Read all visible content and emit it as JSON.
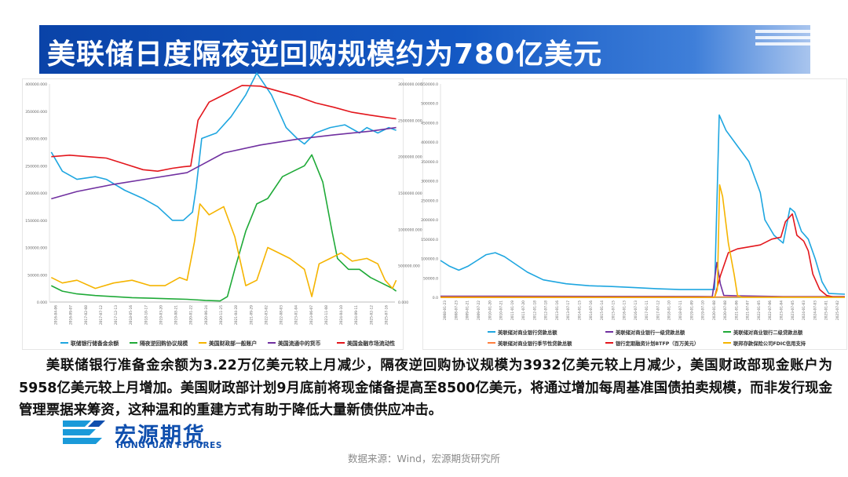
{
  "title": "美联储日度隔夜逆回购规模约为780亿美元",
  "paragraph": "美联储银行准备金余额为3.22万亿美元较上月减少，隔夜逆回购协议规模为3932亿美元较上月减少，美国财政部现金账户为5958亿美元较上月增加。美国财政部计划9月底前将现金储备提高至8500亿美元，将通过增加每周基准国债拍卖规模，而非发行现金管理票据来筹资，这种温和的重建方式有助于降低大量新债供应冲击。",
  "logo": {
    "cn": "宏源期货",
    "en": "HONGYUAN FUTURES"
  },
  "source": "数据来源：Wind，宏源期货研究所",
  "colors": {
    "blue": "#1ea6e0",
    "red": "#e3161c",
    "purple": "#7030a0",
    "green": "#1faa38",
    "yellow": "#f5b400",
    "orange": "#ff7f3f"
  },
  "chart_data": [
    {
      "type": "line",
      "x_range": [
        "2016-04",
        "2025-09"
      ],
      "y_left": {
        "ticks": [
          "0.000",
          "50000.000",
          "100000.000",
          "150000.000",
          "200000.000",
          "250000.000",
          "300000.000",
          "350000.000",
          "400000.000"
        ],
        "lim": [
          0,
          400000
        ]
      },
      "y_right": {
        "ticks": [
          "0.000",
          "500000.000",
          "1000000.000",
          "1500000.000",
          "2000000.000",
          "2500000.000",
          "3000000.000"
        ],
        "lim": [
          0,
          3000000
        ]
      },
      "x_ticks": [
        "2016-04-06",
        "2016-09-07",
        "2017-02-08",
        "2017-07-12",
        "2017-12-13",
        "2018-05-16",
        "2018-10-17",
        "2019-03-20",
        "2019-08-21",
        "2020-01-22",
        "2020-06-24",
        "2020-11-25",
        "2021-04-28",
        "2021-09-29",
        "2022-03-02",
        "2022-08-03",
        "2023-01-04",
        "2023-06-07",
        "2023-11-08",
        "2024-04-10",
        "2024-09-11",
        "2025-02-12",
        "2025-07-16"
      ],
      "series": [
        {
          "name": "联储银行储备金余额",
          "color": "#1ea6e0",
          "axis": "left",
          "points": [
            [
              2016.3,
              275000
            ],
            [
              2016.6,
              240000
            ],
            [
              2017.0,
              225000
            ],
            [
              2017.5,
              230000
            ],
            [
              2017.8,
              225000
            ],
            [
              2018.3,
              205000
            ],
            [
              2018.8,
              190000
            ],
            [
              2019.2,
              175000
            ],
            [
              2019.6,
              150000
            ],
            [
              2019.9,
              150000
            ],
            [
              2020.15,
              165000
            ],
            [
              2020.25,
              210000
            ],
            [
              2020.4,
              300000
            ],
            [
              2020.8,
              310000
            ],
            [
              2021.2,
              340000
            ],
            [
              2021.6,
              380000
            ],
            [
              2021.9,
              420000
            ],
            [
              2022.3,
              380000
            ],
            [
              2022.7,
              320000
            ],
            [
              2023.0,
              300000
            ],
            [
              2023.2,
              290000
            ],
            [
              2023.5,
              310000
            ],
            [
              2023.9,
              320000
            ],
            [
              2024.3,
              325000
            ],
            [
              2024.7,
              310000
            ],
            [
              2024.9,
              320000
            ],
            [
              2025.2,
              310000
            ],
            [
              2025.5,
              320000
            ],
            [
              2025.7,
              315000
            ]
          ]
        },
        {
          "name": "隔夜逆回购协议规模",
          "color": "#1faa38",
          "axis": "left",
          "points": [
            [
              2016.3,
              30000
            ],
            [
              2016.6,
              20000
            ],
            [
              2017.0,
              15000
            ],
            [
              2017.5,
              12000
            ],
            [
              2018.0,
              10000
            ],
            [
              2018.5,
              8000
            ],
            [
              2019.0,
              7000
            ],
            [
              2019.5,
              6000
            ],
            [
              2020.0,
              5000
            ],
            [
              2020.5,
              3000
            ],
            [
              2020.9,
              2000
            ],
            [
              2021.1,
              10000
            ],
            [
              2021.3,
              60000
            ],
            [
              2021.6,
              130000
            ],
            [
              2021.9,
              180000
            ],
            [
              2022.2,
              190000
            ],
            [
              2022.6,
              230000
            ],
            [
              2022.9,
              240000
            ],
            [
              2023.2,
              250000
            ],
            [
              2023.4,
              270000
            ],
            [
              2023.7,
              220000
            ],
            [
              2023.95,
              130000
            ],
            [
              2024.1,
              80000
            ],
            [
              2024.4,
              60000
            ],
            [
              2024.7,
              60000
            ],
            [
              2025.0,
              45000
            ],
            [
              2025.3,
              35000
            ],
            [
              2025.6,
              25000
            ],
            [
              2025.7,
              20000
            ]
          ]
        },
        {
          "name": "美国财政部一般账户",
          "color": "#f5b400",
          "axis": "left",
          "points": [
            [
              2016.3,
              45000
            ],
            [
              2016.6,
              35000
            ],
            [
              2017.0,
              40000
            ],
            [
              2017.5,
              25000
            ],
            [
              2018.0,
              35000
            ],
            [
              2018.5,
              40000
            ],
            [
              2019.0,
              30000
            ],
            [
              2019.4,
              30000
            ],
            [
              2019.8,
              45000
            ],
            [
              2020.0,
              40000
            ],
            [
              2020.2,
              110000
            ],
            [
              2020.35,
              180000
            ],
            [
              2020.6,
              160000
            ],
            [
              2021.0,
              175000
            ],
            [
              2021.3,
              120000
            ],
            [
              2021.6,
              30000
            ],
            [
              2021.9,
              40000
            ],
            [
              2022.2,
              100000
            ],
            [
              2022.5,
              90000
            ],
            [
              2022.8,
              80000
            ],
            [
              2023.2,
              60000
            ],
            [
              2023.4,
              10000
            ],
            [
              2023.6,
              70000
            ],
            [
              2023.9,
              80000
            ],
            [
              2024.2,
              90000
            ],
            [
              2024.5,
              75000
            ],
            [
              2024.9,
              80000
            ],
            [
              2025.2,
              70000
            ],
            [
              2025.4,
              40000
            ],
            [
              2025.6,
              25000
            ],
            [
              2025.7,
              40000
            ]
          ]
        },
        {
          "name": "美国流通中的货币",
          "color": "#7030a0",
          "axis": "right",
          "points": [
            [
              2016.3,
              1420000
            ],
            [
              2017.0,
              1520000
            ],
            [
              2018.0,
              1620000
            ],
            [
              2019.0,
              1700000
            ],
            [
              2020.0,
              1780000
            ],
            [
              2020.3,
              1860000
            ],
            [
              2021.0,
              2050000
            ],
            [
              2022.0,
              2160000
            ],
            [
              2023.0,
              2240000
            ],
            [
              2024.0,
              2300000
            ],
            [
              2025.0,
              2350000
            ],
            [
              2025.7,
              2400000
            ]
          ]
        },
        {
          "name": "美国金融市场流动性",
          "color": "#e3161c",
          "axis": "right",
          "points": [
            [
              2016.3,
              2000000
            ],
            [
              2016.8,
              2020000
            ],
            [
              2017.3,
              2000000
            ],
            [
              2017.8,
              1980000
            ],
            [
              2018.3,
              1900000
            ],
            [
              2018.8,
              1820000
            ],
            [
              2019.2,
              1800000
            ],
            [
              2019.6,
              1840000
            ],
            [
              2019.9,
              1860000
            ],
            [
              2020.1,
              1870000
            ],
            [
              2020.3,
              2500000
            ],
            [
              2020.6,
              2750000
            ],
            [
              2021.0,
              2850000
            ],
            [
              2021.5,
              2980000
            ],
            [
              2022.0,
              2970000
            ],
            [
              2022.5,
              2900000
            ],
            [
              2023.0,
              2830000
            ],
            [
              2023.5,
              2740000
            ],
            [
              2024.0,
              2680000
            ],
            [
              2024.5,
              2610000
            ],
            [
              2025.0,
              2570000
            ],
            [
              2025.4,
              2540000
            ],
            [
              2025.7,
              2520000
            ]
          ]
        }
      ]
    },
    {
      "type": "line",
      "x_range": [
        "2008-01",
        "2025-09"
      ],
      "y_left": {
        "ticks": [
          "0.0",
          "50000.0",
          "100000.0",
          "150000.0",
          "200000.0",
          "250000.0",
          "300000.0",
          "350000.0",
          "400000.0",
          "450000.0",
          "500000.0",
          "550000.0"
        ],
        "lim": [
          0,
          550000
        ]
      },
      "x_ticks": [
        "2008-01-23",
        "2008-07-23",
        "2009-01-21",
        "2009-07-22",
        "2010-01-20",
        "2010-07-21",
        "2011-01-19",
        "2011-07-20",
        "2012-01-18",
        "2012-07-18",
        "2013-01-16",
        "2013-07-17",
        "2014-01-15",
        "2014-07-16",
        "2015-01-14",
        "2015-07-15",
        "2016-01-13",
        "2016-07-13",
        "2017-01-11",
        "2017-07-12",
        "2018-01-10",
        "2018-07-11",
        "2019-01-09",
        "2019-07-10",
        "2020-01-08",
        "2020-07-08",
        "2021-01-06",
        "2021-07-07",
        "2022-01-05",
        "2022-07-06",
        "2023-01-04",
        "2023-07-05",
        "2024-01-03",
        "2024-07-03",
        "2025-01-01",
        "2025-07-02"
      ],
      "series": [
        {
          "name": "美联储对商业银行贷款总额",
          "color": "#1ea6e0",
          "points": [
            [
              2008.0,
              95000
            ],
            [
              2008.4,
              80000
            ],
            [
              2008.8,
              70000
            ],
            [
              2009.2,
              80000
            ],
            [
              2009.6,
              95000
            ],
            [
              2010.0,
              110000
            ],
            [
              2010.4,
              115000
            ],
            [
              2010.8,
              105000
            ],
            [
              2011.3,
              85000
            ],
            [
              2011.8,
              65000
            ],
            [
              2012.5,
              45000
            ],
            [
              2013.5,
              35000
            ],
            [
              2014.5,
              30000
            ],
            [
              2015.5,
              28000
            ],
            [
              2016.5,
              25000
            ],
            [
              2017.5,
              22000
            ],
            [
              2018.5,
              20000
            ],
            [
              2019.5,
              20000
            ],
            [
              2020.0,
              20000
            ],
            [
              2020.2,
              470000
            ],
            [
              2020.5,
              430000
            ],
            [
              2021.0,
              390000
            ],
            [
              2021.5,
              350000
            ],
            [
              2022.0,
              270000
            ],
            [
              2022.2,
              200000
            ],
            [
              2022.6,
              160000
            ],
            [
              2023.0,
              140000
            ],
            [
              2023.3,
              230000
            ],
            [
              2023.5,
              220000
            ],
            [
              2023.8,
              170000
            ],
            [
              2024.1,
              150000
            ],
            [
              2024.4,
              100000
            ],
            [
              2024.7,
              40000
            ],
            [
              2025.0,
              10000
            ],
            [
              2025.7,
              8000
            ]
          ]
        },
        {
          "name": "美联储对商业银行一级贷款总额",
          "color": "#7030a0",
          "points": [
            [
              2008.0,
              3000
            ],
            [
              2019.9,
              2000
            ],
            [
              2020.1,
              90000
            ],
            [
              2020.25,
              35000
            ],
            [
              2020.4,
              5000
            ],
            [
              2021.0,
              4000
            ],
            [
              2022.0,
              3000
            ],
            [
              2023.0,
              2000
            ],
            [
              2024.0,
              2000
            ],
            [
              2025.7,
              2000
            ]
          ]
        },
        {
          "name": "美联储对商业银行二级贷款总额",
          "color": "#1faa38",
          "points": [
            [
              2008.0,
              500
            ],
            [
              2025.7,
              500
            ]
          ]
        },
        {
          "name": "美联储对商业银行季节性贷款总额",
          "color": "#ff7f3f",
          "points": [
            [
              2008.0,
              1000
            ],
            [
              2025.7,
              1000
            ]
          ]
        },
        {
          "name": "银行定期融资计划BTFP（百万美元）",
          "color": "#e3161c",
          "points": [
            [
              2008.0,
              0
            ],
            [
              2020.0,
              0
            ],
            [
              2020.25,
              55000
            ],
            [
              2020.6,
              115000
            ],
            [
              2021.0,
              125000
            ],
            [
              2021.5,
              130000
            ],
            [
              2022.0,
              135000
            ],
            [
              2022.5,
              150000
            ],
            [
              2022.9,
              155000
            ],
            [
              2023.1,
              195000
            ],
            [
              2023.4,
              215000
            ],
            [
              2023.6,
              160000
            ],
            [
              2023.9,
              145000
            ],
            [
              2024.1,
              120000
            ],
            [
              2024.3,
              60000
            ],
            [
              2024.6,
              20000
            ],
            [
              2024.9,
              5000
            ],
            [
              2025.2,
              1000
            ],
            [
              2025.7,
              1000
            ]
          ]
        },
        {
          "name": "联邦存款保险公司FDIC信用支持",
          "color": "#f5b400",
          "points": [
            [
              2008.0,
              0
            ],
            [
              2020.0,
              0
            ],
            [
              2020.12,
              20000
            ],
            [
              2020.22,
              290000
            ],
            [
              2020.35,
              260000
            ],
            [
              2020.6,
              140000
            ],
            [
              2020.85,
              60000
            ],
            [
              2021.0,
              5000
            ],
            [
              2021.2,
              0
            ],
            [
              2025.7,
              0
            ]
          ]
        }
      ]
    }
  ]
}
